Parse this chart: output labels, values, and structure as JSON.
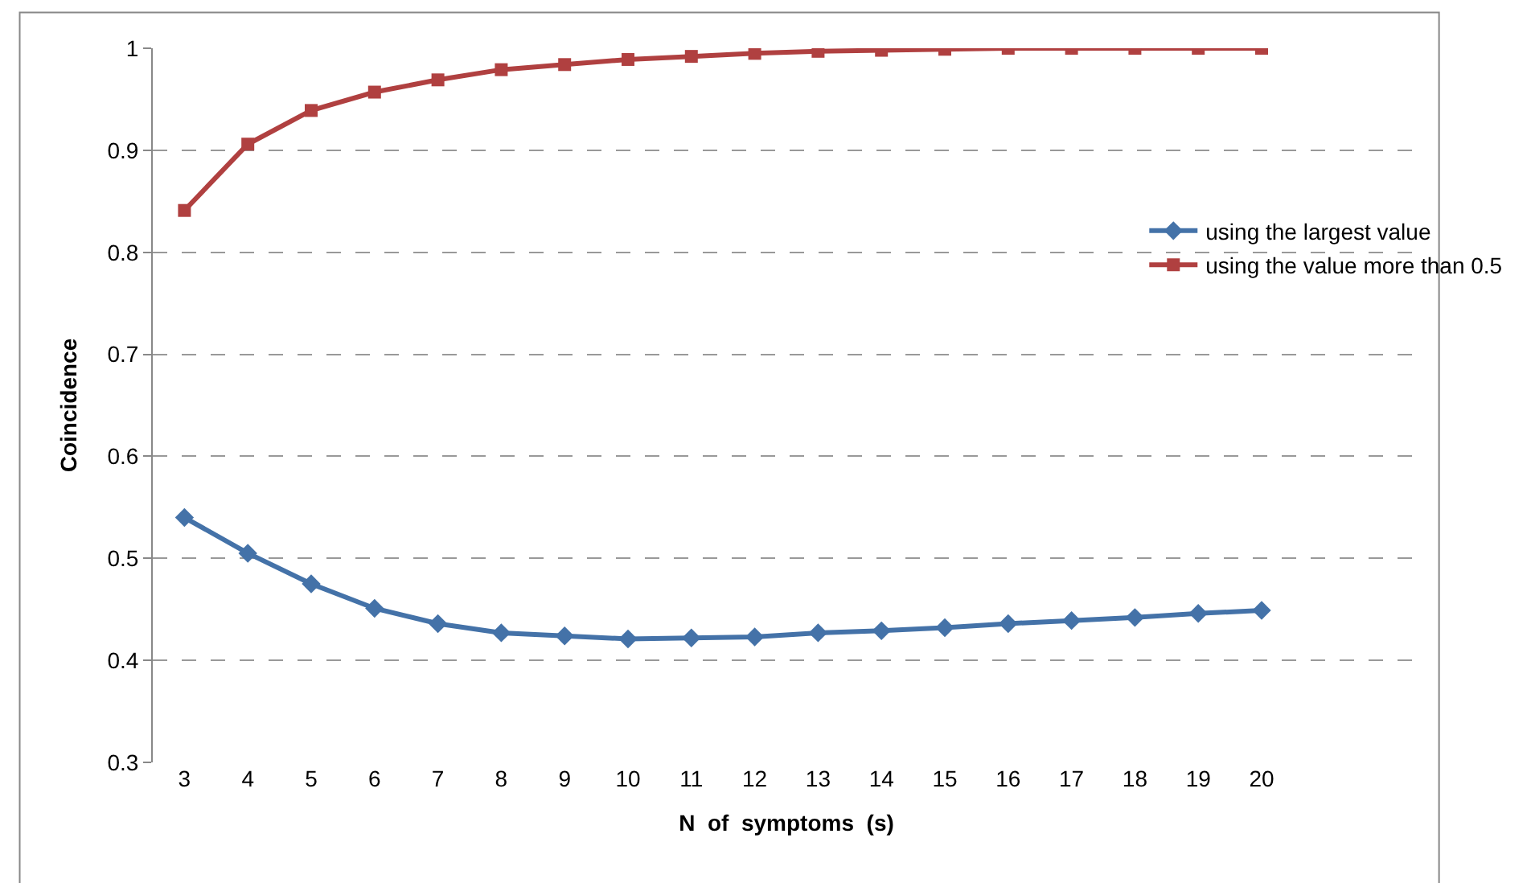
{
  "chart_data": {
    "type": "line",
    "xlabel": "N  of  symptoms  (s)",
    "ylabel": "Coincidence",
    "categories": [
      "3",
      "4",
      "5",
      "6",
      "7",
      "8",
      "9",
      "10",
      "11",
      "12",
      "13",
      "14",
      "15",
      "16",
      "17",
      "18",
      "19",
      "20"
    ],
    "series": [
      {
        "name": "using the largest value",
        "color": "#4472a8",
        "marker": "diamond",
        "values": [
          0.54,
          0.505,
          0.475,
          0.451,
          0.436,
          0.427,
          0.424,
          0.421,
          0.422,
          0.423,
          0.427,
          0.429,
          0.432,
          0.436,
          0.439,
          0.442,
          0.446,
          0.449
        ]
      },
      {
        "name": "using the value more than 0.5",
        "color": "#b04040",
        "marker": "square",
        "values": [
          0.841,
          0.906,
          0.939,
          0.957,
          0.969,
          0.979,
          0.984,
          0.989,
          0.992,
          0.995,
          0.997,
          0.998,
          0.999,
          1.0,
          1.0,
          1.0,
          1.0,
          1.0
        ]
      }
    ],
    "ylim": [
      0.3,
      1.0
    ],
    "yticks": [
      0.3,
      0.4,
      0.5,
      0.6,
      0.7,
      0.8,
      0.9,
      1
    ],
    "grid": "y",
    "legend": "right",
    "line_style": "solid"
  }
}
